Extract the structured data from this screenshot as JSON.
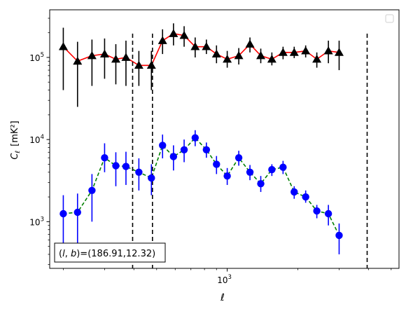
{
  "chart_data": {
    "type": "scatter",
    "xscale": "log",
    "yscale": "log",
    "xlim": [
      175,
      5400
    ],
    "ylim": [
      270,
      380000
    ],
    "xlabel": "ℓ",
    "ylabel_main": "C",
    "ylabel_sub": "ℓ",
    "ylabel_unit": "[mK²]",
    "x_ticks": [
      {
        "value": 1000,
        "base": "10",
        "exp": "3"
      }
    ],
    "y_ticks": [
      {
        "value": 1000,
        "base": "10",
        "exp": "3"
      },
      {
        "value": 10000,
        "base": "10",
        "exp": "4"
      },
      {
        "value": 100000,
        "base": "10",
        "exp": "5"
      }
    ],
    "annotation": {
      "prefix": "(",
      "italic": "l",
      "mid": ", ",
      "italic2": "b",
      "suffix": ")=(186.91,12.32)"
    },
    "vlines": [
      395,
      480,
      3950
    ],
    "series": [
      {
        "marker": "triangle",
        "color": "#000000",
        "line_color": "#ff0000",
        "line_style": "solid",
        "points": [
          {
            "x": 200,
            "y": 135000,
            "lo": 40000,
            "hi": 230000
          },
          {
            "x": 230,
            "y": 90000,
            "lo": 25000,
            "hi": 155000
          },
          {
            "x": 265,
            "y": 105000,
            "lo": 45000,
            "hi": 165000
          },
          {
            "x": 300,
            "y": 110000,
            "lo": 55000,
            "hi": 170000
          },
          {
            "x": 335,
            "y": 95000,
            "lo": 47000,
            "hi": 145000
          },
          {
            "x": 370,
            "y": 100000,
            "lo": 45000,
            "hi": 160000
          },
          {
            "x": 420,
            "y": 80000,
            "lo": 45000,
            "hi": 120000
          },
          {
            "x": 475,
            "y": 80000,
            "lo": 40000,
            "hi": 120000
          },
          {
            "x": 530,
            "y": 160000,
            "lo": 110000,
            "hi": 220000
          },
          {
            "x": 590,
            "y": 195000,
            "lo": 140000,
            "hi": 260000
          },
          {
            "x": 655,
            "y": 185000,
            "lo": 135000,
            "hi": 240000
          },
          {
            "x": 730,
            "y": 135000,
            "lo": 100000,
            "hi": 175000
          },
          {
            "x": 815,
            "y": 135000,
            "lo": 110000,
            "hi": 165000
          },
          {
            "x": 900,
            "y": 110000,
            "lo": 85000,
            "hi": 140000
          },
          {
            "x": 1000,
            "y": 95000,
            "lo": 75000,
            "hi": 120000
          },
          {
            "x": 1120,
            "y": 105000,
            "lo": 82000,
            "hi": 130000
          },
          {
            "x": 1250,
            "y": 145000,
            "lo": 115000,
            "hi": 175000
          },
          {
            "x": 1390,
            "y": 105000,
            "lo": 85000,
            "hi": 128000
          },
          {
            "x": 1550,
            "y": 95000,
            "lo": 80000,
            "hi": 115000
          },
          {
            "x": 1730,
            "y": 115000,
            "lo": 95000,
            "hi": 135000
          },
          {
            "x": 1930,
            "y": 115000,
            "lo": 98000,
            "hi": 135000
          },
          {
            "x": 2160,
            "y": 120000,
            "lo": 100000,
            "hi": 140000
          },
          {
            "x": 2410,
            "y": 95000,
            "lo": 75000,
            "hi": 115000
          },
          {
            "x": 2700,
            "y": 120000,
            "lo": 85000,
            "hi": 160000
          },
          {
            "x": 3000,
            "y": 115000,
            "lo": 70000,
            "hi": 160000
          }
        ]
      },
      {
        "marker": "circle",
        "color": "#0000ff",
        "line_color": "#008000",
        "line_style": "dashed",
        "points": [
          {
            "x": 200,
            "y": 1250,
            "lo": 500,
            "hi": 2100
          },
          {
            "x": 230,
            "y": 1300,
            "lo": 550,
            "hi": 2200
          },
          {
            "x": 265,
            "y": 2400,
            "lo": 1000,
            "hi": 3800
          },
          {
            "x": 300,
            "y": 6000,
            "lo": 4000,
            "hi": 9000
          },
          {
            "x": 335,
            "y": 4800,
            "lo": 2700,
            "hi": 7000
          },
          {
            "x": 370,
            "y": 4700,
            "lo": 2800,
            "hi": 7100
          },
          {
            "x": 420,
            "y": 4000,
            "lo": 2400,
            "hi": 5900
          },
          {
            "x": 475,
            "y": 3400,
            "lo": 2100,
            "hi": 5000
          },
          {
            "x": 530,
            "y": 8500,
            "lo": 5900,
            "hi": 11500
          },
          {
            "x": 590,
            "y": 6200,
            "lo": 4200,
            "hi": 8500
          },
          {
            "x": 655,
            "y": 7500,
            "lo": 5300,
            "hi": 10000
          },
          {
            "x": 730,
            "y": 10500,
            "lo": 8300,
            "hi": 13000
          },
          {
            "x": 815,
            "y": 7500,
            "lo": 6000,
            "hi": 9200
          },
          {
            "x": 900,
            "y": 5000,
            "lo": 3800,
            "hi": 6300
          },
          {
            "x": 1000,
            "y": 3600,
            "lo": 2800,
            "hi": 4500
          },
          {
            "x": 1120,
            "y": 6000,
            "lo": 4800,
            "hi": 7300
          },
          {
            "x": 1250,
            "y": 4000,
            "lo": 3200,
            "hi": 4900
          },
          {
            "x": 1390,
            "y": 2900,
            "lo": 2300,
            "hi": 3600
          },
          {
            "x": 1550,
            "y": 4300,
            "lo": 3600,
            "hi": 5000
          },
          {
            "x": 1730,
            "y": 4600,
            "lo": 3800,
            "hi": 5500
          },
          {
            "x": 1930,
            "y": 2300,
            "lo": 1900,
            "hi": 2700
          },
          {
            "x": 2160,
            "y": 2000,
            "lo": 1700,
            "hi": 2400
          },
          {
            "x": 2410,
            "y": 1350,
            "lo": 1100,
            "hi": 1600
          },
          {
            "x": 2700,
            "y": 1250,
            "lo": 900,
            "hi": 1600
          },
          {
            "x": 3000,
            "y": 680,
            "lo": 400,
            "hi": 950
          }
        ]
      }
    ]
  }
}
